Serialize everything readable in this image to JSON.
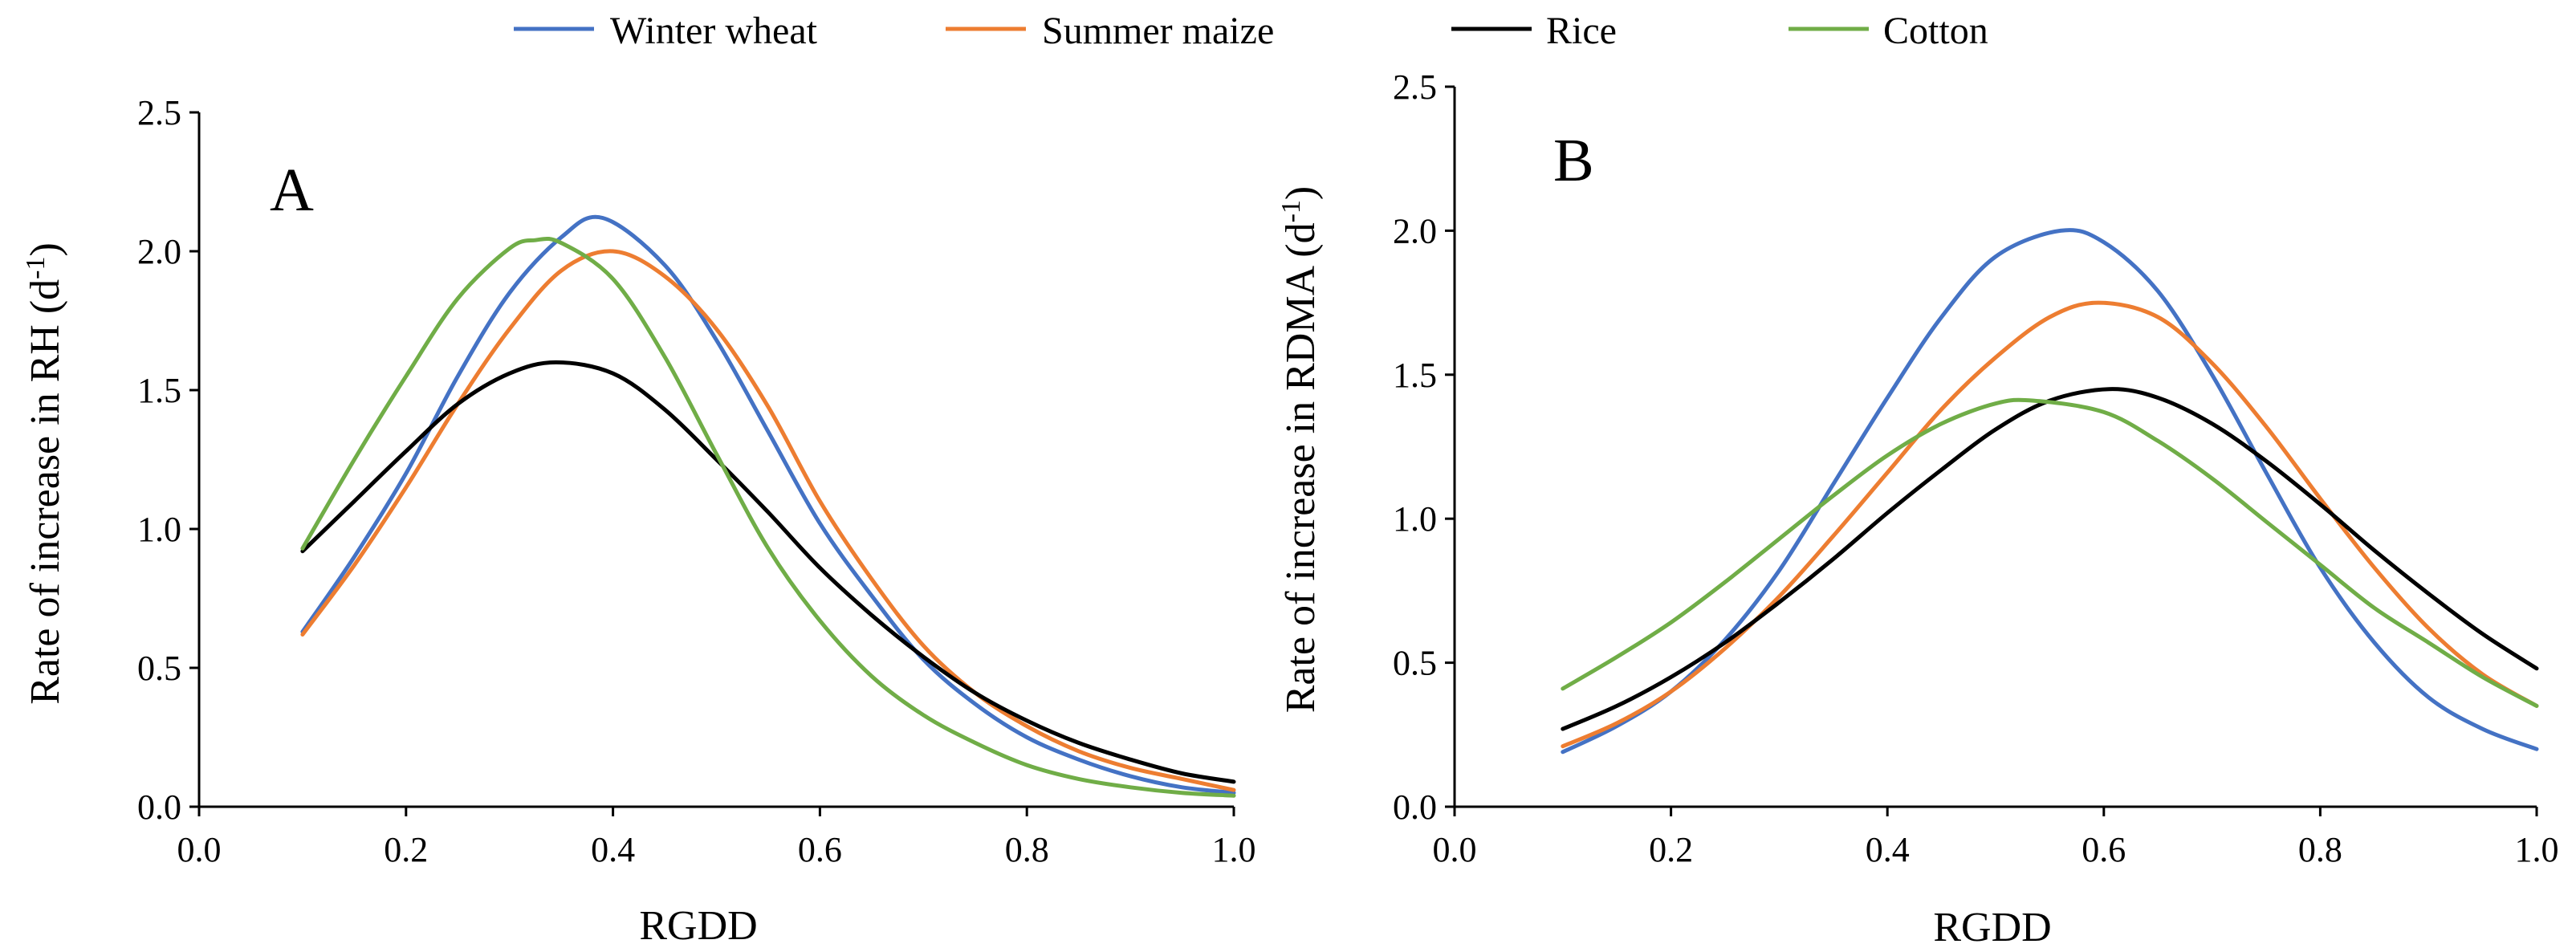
{
  "legend": {
    "items": [
      {
        "key": "winter_wheat",
        "label": "Winter wheat",
        "color": "#4472C4"
      },
      {
        "key": "summer_maize",
        "label": "Summer maize",
        "color": "#ED7D31"
      },
      {
        "key": "rice",
        "label": "Rice",
        "color": "#000000"
      },
      {
        "key": "cotton",
        "label": "Cotton",
        "color": "#70AD47"
      }
    ]
  },
  "chart_data": [
    {
      "type": "line",
      "panel": "A",
      "xlabel": "RGDD",
      "ylabel_main": "Rate of increase in RH (d",
      "ylabel_sup": "-1",
      "ylabel_end": ")",
      "xlim": [
        0,
        1
      ],
      "ylim": [
        0,
        2.5
      ],
      "xticks": [
        "0.0",
        "0.2",
        "0.4",
        "0.6",
        "0.8",
        "1.0"
      ],
      "yticks": [
        "0.0",
        "0.5",
        "1.0",
        "1.5",
        "2.0",
        "2.5"
      ],
      "grid": false,
      "series": [
        {
          "key": "winter_wheat",
          "name": "Winter wheat",
          "x": [
            0.1,
            0.15,
            0.2,
            0.25,
            0.3,
            0.35,
            0.39,
            0.45,
            0.5,
            0.55,
            0.6,
            0.65,
            0.7,
            0.75,
            0.8,
            0.85,
            0.9,
            0.95,
            1.0
          ],
          "y": [
            0.63,
            0.9,
            1.2,
            1.55,
            1.85,
            2.05,
            2.12,
            1.95,
            1.68,
            1.35,
            1.02,
            0.76,
            0.53,
            0.37,
            0.25,
            0.17,
            0.11,
            0.07,
            0.05
          ]
        },
        {
          "key": "summer_maize",
          "name": "Summer maize",
          "x": [
            0.1,
            0.15,
            0.2,
            0.25,
            0.3,
            0.35,
            0.4,
            0.45,
            0.5,
            0.55,
            0.6,
            0.65,
            0.7,
            0.75,
            0.8,
            0.85,
            0.9,
            0.95,
            1.0
          ],
          "y": [
            0.62,
            0.87,
            1.15,
            1.45,
            1.72,
            1.93,
            2.0,
            1.91,
            1.72,
            1.44,
            1.1,
            0.82,
            0.58,
            0.41,
            0.29,
            0.2,
            0.14,
            0.1,
            0.06
          ]
        },
        {
          "key": "rice",
          "name": "Rice",
          "x": [
            0.1,
            0.15,
            0.2,
            0.25,
            0.3,
            0.345,
            0.4,
            0.45,
            0.5,
            0.55,
            0.6,
            0.65,
            0.7,
            0.75,
            0.8,
            0.85,
            0.9,
            0.95,
            1.0
          ],
          "y": [
            0.92,
            1.1,
            1.28,
            1.45,
            1.56,
            1.6,
            1.56,
            1.43,
            1.25,
            1.06,
            0.86,
            0.69,
            0.54,
            0.41,
            0.31,
            0.23,
            0.17,
            0.12,
            0.09
          ]
        },
        {
          "key": "cotton",
          "name": "Cotton",
          "x": [
            0.1,
            0.15,
            0.2,
            0.25,
            0.3,
            0.325,
            0.35,
            0.4,
            0.45,
            0.5,
            0.55,
            0.6,
            0.65,
            0.7,
            0.75,
            0.8,
            0.85,
            0.9,
            0.95,
            1.0
          ],
          "y": [
            0.93,
            1.25,
            1.55,
            1.83,
            2.01,
            2.04,
            2.03,
            1.9,
            1.62,
            1.27,
            0.93,
            0.67,
            0.47,
            0.33,
            0.23,
            0.15,
            0.1,
            0.07,
            0.05,
            0.04
          ]
        }
      ]
    },
    {
      "type": "line",
      "panel": "B",
      "xlabel": "RGDD",
      "ylabel_main": "Rate of increase in RDMA (d",
      "ylabel_sup": "-1",
      "ylabel_end": ")",
      "xlim": [
        0,
        1
      ],
      "ylim": [
        0,
        2.5
      ],
      "xticks": [
        "0.0",
        "0.2",
        "0.4",
        "0.6",
        "0.8",
        "1.0"
      ],
      "yticks": [
        "0.0",
        "0.5",
        "1.0",
        "1.5",
        "2.0",
        "2.5"
      ],
      "grid": false,
      "series": [
        {
          "key": "winter_wheat",
          "name": "Winter wheat",
          "x": [
            0.1,
            0.15,
            0.2,
            0.25,
            0.3,
            0.35,
            0.4,
            0.45,
            0.5,
            0.56,
            0.6,
            0.65,
            0.7,
            0.75,
            0.8,
            0.85,
            0.9,
            0.95,
            1.0
          ],
          "y": [
            0.19,
            0.28,
            0.4,
            0.58,
            0.82,
            1.12,
            1.42,
            1.7,
            1.91,
            2.0,
            1.96,
            1.79,
            1.5,
            1.16,
            0.83,
            0.57,
            0.38,
            0.27,
            0.2
          ]
        },
        {
          "key": "summer_maize",
          "name": "Summer maize",
          "x": [
            0.1,
            0.15,
            0.2,
            0.25,
            0.3,
            0.35,
            0.4,
            0.45,
            0.5,
            0.55,
            0.595,
            0.65,
            0.7,
            0.75,
            0.8,
            0.85,
            0.9,
            0.95,
            1.0
          ],
          "y": [
            0.21,
            0.29,
            0.4,
            0.55,
            0.73,
            0.94,
            1.16,
            1.38,
            1.56,
            1.7,
            1.75,
            1.7,
            1.54,
            1.32,
            1.07,
            0.83,
            0.62,
            0.46,
            0.35
          ]
        },
        {
          "key": "rice",
          "name": "Rice",
          "x": [
            0.1,
            0.15,
            0.2,
            0.25,
            0.3,
            0.35,
            0.4,
            0.45,
            0.5,
            0.55,
            0.605,
            0.65,
            0.7,
            0.75,
            0.8,
            0.85,
            0.9,
            0.95,
            1.0
          ],
          "y": [
            0.27,
            0.35,
            0.45,
            0.57,
            0.71,
            0.86,
            1.02,
            1.17,
            1.31,
            1.41,
            1.45,
            1.42,
            1.33,
            1.2,
            1.05,
            0.89,
            0.74,
            0.6,
            0.48
          ]
        },
        {
          "key": "cotton",
          "name": "Cotton",
          "x": [
            0.1,
            0.15,
            0.2,
            0.25,
            0.3,
            0.35,
            0.4,
            0.45,
            0.5,
            0.535,
            0.6,
            0.65,
            0.7,
            0.75,
            0.8,
            0.85,
            0.9,
            0.95,
            1.0
          ],
          "y": [
            0.41,
            0.52,
            0.64,
            0.78,
            0.93,
            1.08,
            1.22,
            1.33,
            1.4,
            1.41,
            1.37,
            1.27,
            1.14,
            0.99,
            0.84,
            0.69,
            0.57,
            0.45,
            0.35
          ]
        }
      ]
    }
  ]
}
